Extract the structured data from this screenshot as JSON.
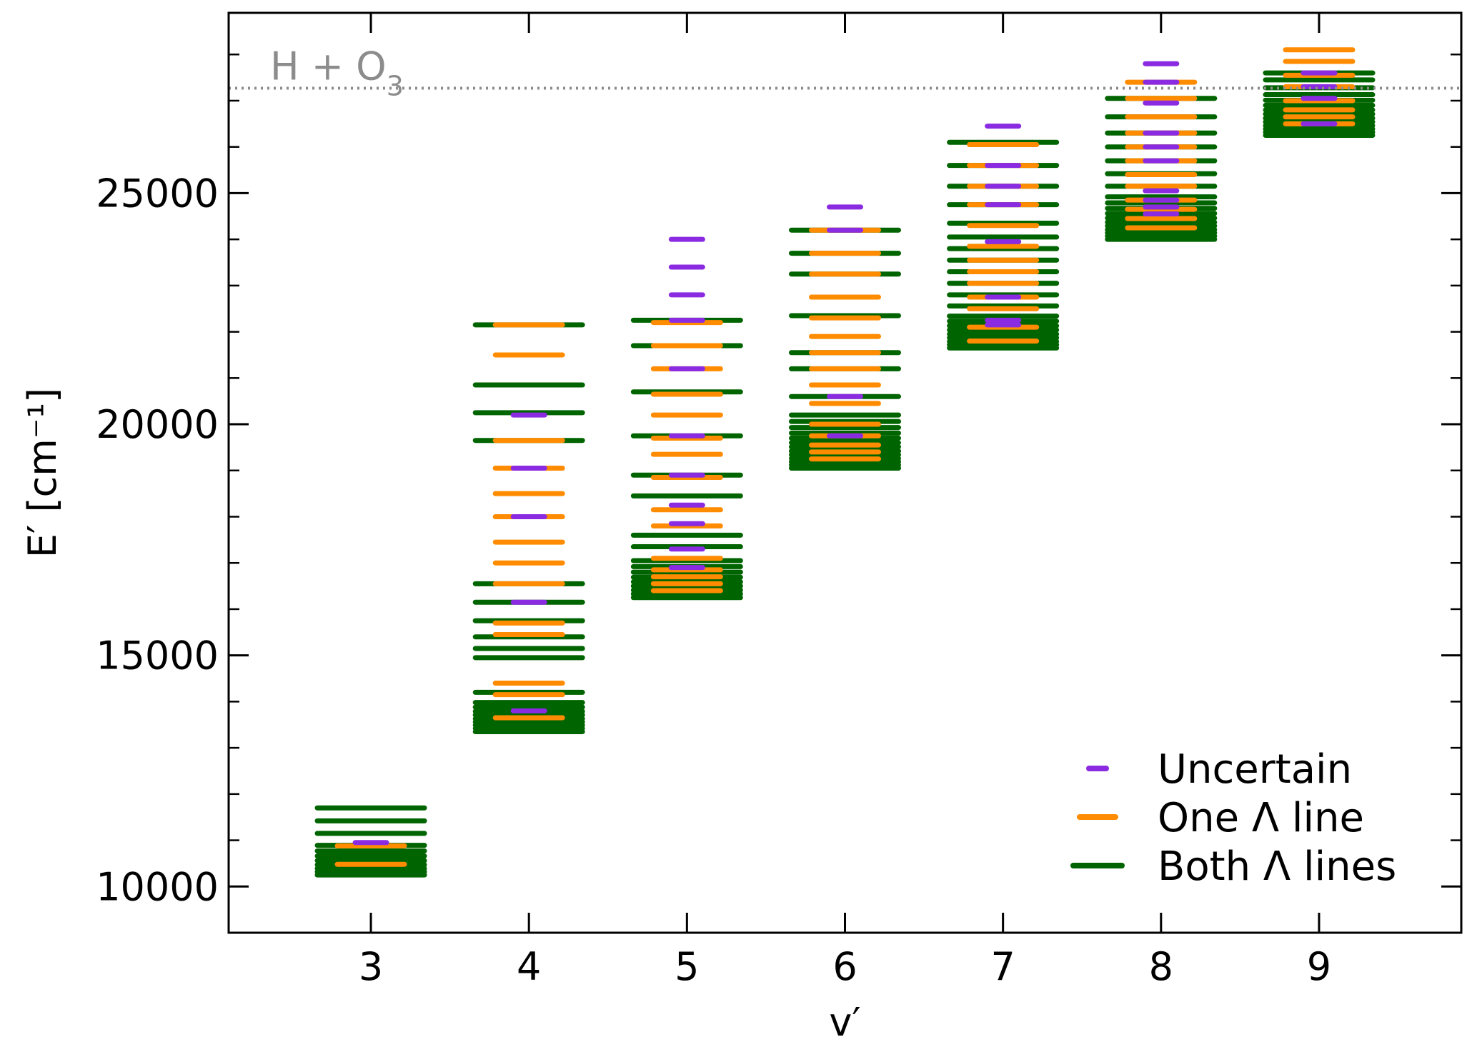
{
  "chart_data": {
    "type": "scatter",
    "xlabel": "v′",
    "ylabel": "E′ [cm⁻¹]",
    "xlim": [
      2.1,
      9.9
    ],
    "ylim": [
      9000,
      28900
    ],
    "xticks": [
      "3",
      "4",
      "5",
      "6",
      "7",
      "8",
      "9"
    ],
    "yticks": [
      "10000",
      "15000",
      "20000",
      "25000"
    ],
    "xtick_values": [
      3,
      4,
      5,
      6,
      7,
      8,
      9
    ],
    "ytick_values": [
      10000,
      15000,
      20000,
      25000
    ],
    "grid": false,
    "legend_position": "bottom-right",
    "annotation": {
      "text": "H + O",
      "subscript": "3",
      "y": 27270
    },
    "colors": {
      "uncertain": "#8a2be2",
      "one_lambda": "#ff8c00",
      "both_lambda": "#006400",
      "annotation": "#8c8c8c"
    },
    "series": [
      {
        "name": "Both Λ lines",
        "color": "#006400",
        "points": [
          [
            3,
            10250
          ],
          [
            3,
            10320
          ],
          [
            3,
            10390
          ],
          [
            3,
            10470
          ],
          [
            3,
            10560
          ],
          [
            3,
            10660
          ],
          [
            3,
            10770
          ],
          [
            3,
            10890
          ],
          [
            3,
            11150
          ],
          [
            3,
            11420
          ],
          [
            3,
            11700
          ],
          [
            4,
            13350
          ],
          [
            4,
            13420
          ],
          [
            4,
            13490
          ],
          [
            4,
            13560
          ],
          [
            4,
            13630
          ],
          [
            4,
            13710
          ],
          [
            4,
            13790
          ],
          [
            4,
            13880
          ],
          [
            4,
            13980
          ],
          [
            4,
            14200
          ],
          [
            4,
            14950
          ],
          [
            4,
            15150
          ],
          [
            4,
            15400
          ],
          [
            4,
            15750
          ],
          [
            4,
            16150
          ],
          [
            4,
            16550
          ],
          [
            4,
            19650
          ],
          [
            4,
            20250
          ],
          [
            4,
            20850
          ],
          [
            4,
            22150
          ],
          [
            5,
            16250
          ],
          [
            5,
            16330
          ],
          [
            5,
            16410
          ],
          [
            5,
            16500
          ],
          [
            5,
            16590
          ],
          [
            5,
            16690
          ],
          [
            5,
            16800
          ],
          [
            5,
            16920
          ],
          [
            5,
            17050
          ],
          [
            5,
            17350
          ],
          [
            5,
            17600
          ],
          [
            5,
            18450
          ],
          [
            5,
            18900
          ],
          [
            5,
            19750
          ],
          [
            5,
            20700
          ],
          [
            5,
            21700
          ],
          [
            5,
            22250
          ],
          [
            6,
            19050
          ],
          [
            6,
            19120
          ],
          [
            6,
            19190
          ],
          [
            6,
            19260
          ],
          [
            6,
            19340
          ],
          [
            6,
            19420
          ],
          [
            6,
            19510
          ],
          [
            6,
            19600
          ],
          [
            6,
            19700
          ],
          [
            6,
            19810
          ],
          [
            6,
            19930
          ],
          [
            6,
            20060
          ],
          [
            6,
            20200
          ],
          [
            6,
            20600
          ],
          [
            6,
            21200
          ],
          [
            6,
            21550
          ],
          [
            6,
            22350
          ],
          [
            6,
            23250
          ],
          [
            6,
            23700
          ],
          [
            6,
            24200
          ],
          [
            7,
            21650
          ],
          [
            7,
            21720
          ],
          [
            7,
            21790
          ],
          [
            7,
            21870
          ],
          [
            7,
            21950
          ],
          [
            7,
            22040
          ],
          [
            7,
            22130
          ],
          [
            7,
            22230
          ],
          [
            7,
            22340
          ],
          [
            7,
            22560
          ],
          [
            7,
            22800
          ],
          [
            7,
            23050
          ],
          [
            7,
            23300
          ],
          [
            7,
            23550
          ],
          [
            7,
            23800
          ],
          [
            7,
            24050
          ],
          [
            7,
            24350
          ],
          [
            7,
            24750
          ],
          [
            7,
            25150
          ],
          [
            7,
            25600
          ],
          [
            7,
            26100
          ],
          [
            8,
            24000
          ],
          [
            8,
            24070
          ],
          [
            8,
            24140
          ],
          [
            8,
            24210
          ],
          [
            8,
            24290
          ],
          [
            8,
            24370
          ],
          [
            8,
            24460
          ],
          [
            8,
            24560
          ],
          [
            8,
            24670
          ],
          [
            8,
            24790
          ],
          [
            8,
            24920
          ],
          [
            8,
            25150
          ],
          [
            8,
            25420
          ],
          [
            8,
            25700
          ],
          [
            8,
            26000
          ],
          [
            8,
            26300
          ],
          [
            8,
            26650
          ],
          [
            8,
            27050
          ],
          [
            9,
            26250
          ],
          [
            9,
            26320
          ],
          [
            9,
            26390
          ],
          [
            9,
            26460
          ],
          [
            9,
            26540
          ],
          [
            9,
            26620
          ],
          [
            9,
            26710
          ],
          [
            9,
            26800
          ],
          [
            9,
            26900
          ],
          [
            9,
            27010
          ],
          [
            9,
            27130
          ],
          [
            9,
            27280
          ],
          [
            9,
            27450
          ],
          [
            9,
            27600
          ]
        ]
      },
      {
        "name": "One Λ line",
        "color": "#ff8c00",
        "points": [
          [
            3,
            10480
          ],
          [
            3,
            10880
          ],
          [
            4,
            13650
          ],
          [
            4,
            14150
          ],
          [
            4,
            14400
          ],
          [
            4,
            15450
          ],
          [
            4,
            15700
          ],
          [
            4,
            16550
          ],
          [
            4,
            17000
          ],
          [
            4,
            17450
          ],
          [
            4,
            18000
          ],
          [
            4,
            18500
          ],
          [
            4,
            19050
          ],
          [
            4,
            19650
          ],
          [
            4,
            21500
          ],
          [
            4,
            22150
          ],
          [
            5,
            16400
          ],
          [
            5,
            16550
          ],
          [
            5,
            16700
          ],
          [
            5,
            16850
          ],
          [
            5,
            17100
          ],
          [
            5,
            17800
          ],
          [
            5,
            18150
          ],
          [
            5,
            18850
          ],
          [
            5,
            19350
          ],
          [
            5,
            19700
          ],
          [
            5,
            20200
          ],
          [
            5,
            20650
          ],
          [
            5,
            21200
          ],
          [
            5,
            21700
          ],
          [
            5,
            22200
          ],
          [
            6,
            19250
          ],
          [
            6,
            19400
          ],
          [
            6,
            19550
          ],
          [
            6,
            19750
          ],
          [
            6,
            20000
          ],
          [
            6,
            20450
          ],
          [
            6,
            20850
          ],
          [
            6,
            21200
          ],
          [
            6,
            21550
          ],
          [
            6,
            21900
          ],
          [
            6,
            22300
          ],
          [
            6,
            22750
          ],
          [
            6,
            23250
          ],
          [
            6,
            23700
          ],
          [
            6,
            24200
          ],
          [
            7,
            21800
          ],
          [
            7,
            22100
          ],
          [
            7,
            22500
          ],
          [
            7,
            22750
          ],
          [
            7,
            23050
          ],
          [
            7,
            23300
          ],
          [
            7,
            23550
          ],
          [
            7,
            23850
          ],
          [
            7,
            24300
          ],
          [
            7,
            24750
          ],
          [
            7,
            25150
          ],
          [
            7,
            25600
          ],
          [
            7,
            26050
          ],
          [
            8,
            24250
          ],
          [
            8,
            24450
          ],
          [
            8,
            24650
          ],
          [
            8,
            24850
          ],
          [
            8,
            25150
          ],
          [
            8,
            25400
          ],
          [
            8,
            25700
          ],
          [
            8,
            26000
          ],
          [
            8,
            26300
          ],
          [
            8,
            26650
          ],
          [
            8,
            27050
          ],
          [
            8,
            27400
          ],
          [
            9,
            26500
          ],
          [
            9,
            26650
          ],
          [
            9,
            26800
          ],
          [
            9,
            27000
          ],
          [
            9,
            27300
          ],
          [
            9,
            27550
          ],
          [
            9,
            27850
          ],
          [
            9,
            28100
          ]
        ]
      },
      {
        "name": "Uncertain",
        "color": "#8a2be2",
        "points": [
          [
            3,
            10950
          ],
          [
            4,
            13800
          ],
          [
            4,
            16150
          ],
          [
            4,
            18000
          ],
          [
            4,
            19050
          ],
          [
            4,
            20200
          ],
          [
            5,
            16900
          ],
          [
            5,
            17300
          ],
          [
            5,
            17850
          ],
          [
            5,
            18250
          ],
          [
            5,
            18900
          ],
          [
            5,
            19750
          ],
          [
            5,
            21200
          ],
          [
            5,
            22250
          ],
          [
            5,
            22800
          ],
          [
            5,
            23400
          ],
          [
            5,
            24000
          ],
          [
            6,
            19750
          ],
          [
            6,
            20600
          ],
          [
            6,
            24200
          ],
          [
            6,
            24700
          ],
          [
            7,
            22150
          ],
          [
            7,
            22250
          ],
          [
            7,
            22750
          ],
          [
            7,
            23950
          ],
          [
            7,
            24750
          ],
          [
            7,
            25150
          ],
          [
            7,
            25600
          ],
          [
            7,
            26450
          ],
          [
            8,
            24550
          ],
          [
            8,
            24700
          ],
          [
            8,
            24850
          ],
          [
            8,
            25050
          ],
          [
            8,
            25700
          ],
          [
            8,
            26000
          ],
          [
            8,
            26300
          ],
          [
            8,
            26950
          ],
          [
            8,
            27400
          ],
          [
            8,
            27800
          ],
          [
            9,
            26500
          ],
          [
            9,
            27050
          ],
          [
            9,
            27300
          ],
          [
            9,
            27600
          ]
        ]
      }
    ]
  }
}
